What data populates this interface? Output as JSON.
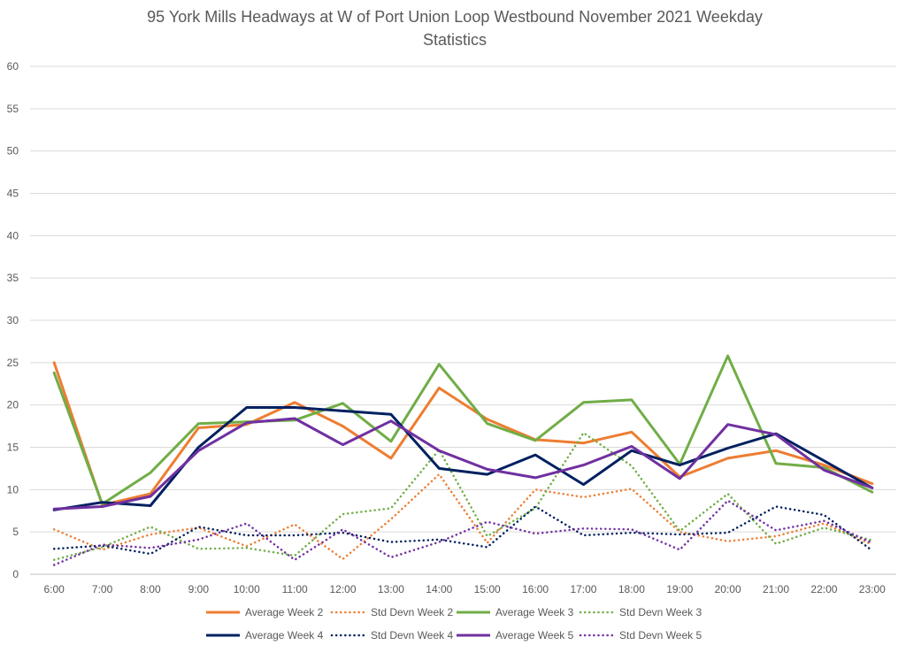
{
  "chart_data": {
    "type": "line",
    "title": [
      "95 York Mills Headways at W of Port Union Loop Westbound November 2021 Weekday",
      "Statistics"
    ],
    "xlabel": "",
    "ylabel": "",
    "ylim": [
      0,
      60
    ],
    "yticks": [
      0,
      5,
      10,
      15,
      20,
      25,
      30,
      35,
      40,
      45,
      50,
      55,
      60
    ],
    "grid": true,
    "legend_position": "bottom",
    "categories": [
      "6:00",
      "7:00",
      "8:00",
      "9:00",
      "10:00",
      "11:00",
      "12:00",
      "13:00",
      "14:00",
      "15:00",
      "16:00",
      "17:00",
      "18:00",
      "19:00",
      "20:00",
      "21:00",
      "22:00",
      "23:00"
    ],
    "series": [
      {
        "name": "Average Week 2",
        "color": "#ED7D31",
        "style": "solid",
        "values": [
          25.0,
          8.2,
          9.5,
          17.3,
          17.7,
          20.3,
          17.5,
          13.7,
          22.0,
          18.3,
          15.9,
          15.5,
          16.8,
          11.5,
          13.7,
          14.6,
          12.9,
          10.7
        ]
      },
      {
        "name": "Std Devn Week 2",
        "color": "#ED7D31",
        "style": "dotted",
        "values": [
          5.3,
          2.9,
          4.7,
          5.5,
          3.3,
          5.9,
          1.8,
          6.5,
          11.8,
          3.7,
          10.0,
          9.1,
          10.1,
          5.0,
          3.9,
          4.5,
          6.0,
          3.5
        ]
      },
      {
        "name": "Average Week 3",
        "color": "#70AD47",
        "style": "solid",
        "values": [
          23.8,
          8.3,
          12.0,
          17.8,
          18.0,
          18.2,
          20.2,
          15.7,
          24.8,
          17.8,
          15.8,
          20.3,
          20.6,
          13.0,
          25.8,
          13.1,
          12.6,
          9.7
        ]
      },
      {
        "name": "Std Devn Week 3",
        "color": "#70AD47",
        "style": "dotted",
        "values": [
          1.7,
          3.2,
          5.6,
          3.0,
          3.1,
          2.2,
          7.1,
          7.8,
          14.7,
          4.5,
          7.8,
          16.7,
          12.8,
          5.1,
          9.5,
          3.6,
          5.5,
          4.0
        ]
      },
      {
        "name": "Average Week 4",
        "color": "#002060",
        "style": "solid",
        "values": [
          7.6,
          8.5,
          8.1,
          15.0,
          19.7,
          19.7,
          19.3,
          18.9,
          12.5,
          11.8,
          14.1,
          10.6,
          14.6,
          12.9,
          14.9,
          16.6,
          13.4,
          10.2
        ]
      },
      {
        "name": "Std Devn Week 4",
        "color": "#002060",
        "style": "dotted",
        "values": [
          3.0,
          3.4,
          2.4,
          5.6,
          4.6,
          4.6,
          4.9,
          3.8,
          4.1,
          3.2,
          8.0,
          4.6,
          4.9,
          4.7,
          4.9,
          8.0,
          7.0,
          2.8
        ]
      },
      {
        "name": "Average Week 5",
        "color": "#7030A0",
        "style": "solid",
        "values": [
          7.7,
          8.0,
          9.2,
          14.6,
          17.9,
          18.4,
          15.3,
          18.1,
          14.6,
          12.4,
          11.4,
          12.9,
          15.1,
          11.3,
          17.7,
          16.5,
          12.3,
          10.2
        ]
      },
      {
        "name": "Std Devn Week 5",
        "color": "#7030A0",
        "style": "dotted",
        "values": [
          1.1,
          3.5,
          3.1,
          4.1,
          6.0,
          1.7,
          5.3,
          2.0,
          3.8,
          6.2,
          4.8,
          5.4,
          5.3,
          2.9,
          8.7,
          5.2,
          6.3,
          3.7
        ]
      }
    ]
  }
}
